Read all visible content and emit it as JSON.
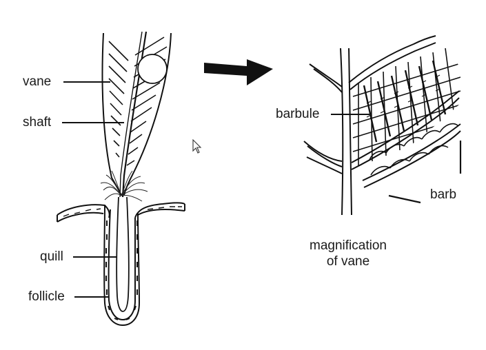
{
  "diagram": {
    "left_labels": {
      "vane": "vane",
      "shaft": "shaft",
      "quill": "quill",
      "follicle": "follicle"
    },
    "right_labels": {
      "barbule": "barbule",
      "barb": "barb"
    },
    "caption": {
      "line1": "magnification",
      "line2": "of vane"
    },
    "colors": {
      "ink": "#111111",
      "background": "#ffffff",
      "circle_fill": "#ffffff"
    }
  }
}
